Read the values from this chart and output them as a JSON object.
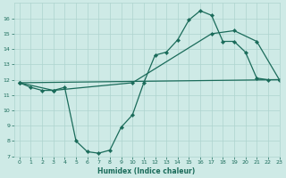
{
  "line1_x": [
    0,
    1,
    2,
    3,
    4,
    5,
    6,
    7,
    8,
    9,
    10,
    11,
    12,
    13,
    14,
    15,
    16,
    17,
    18,
    19,
    20,
    21,
    22,
    23
  ],
  "line1_y": [
    11.8,
    11.5,
    11.3,
    11.3,
    11.5,
    8.0,
    7.3,
    7.2,
    7.4,
    8.9,
    9.7,
    11.8,
    13.6,
    13.8,
    14.6,
    15.9,
    16.5,
    16.2,
    14.5,
    14.5,
    13.8,
    12.1,
    12.0,
    12.0
  ],
  "line2_x": [
    0,
    23
  ],
  "line2_y": [
    11.8,
    12.0
  ],
  "line3_x": [
    0,
    3,
    10,
    17,
    19,
    21,
    23
  ],
  "line3_y": [
    11.8,
    11.3,
    11.8,
    15.0,
    15.2,
    14.5,
    12.0
  ],
  "color": "#1a6b5a",
  "bg_color": "#ceeae6",
  "grid_color": "#aed4cf",
  "xlabel": "Humidex (Indice chaleur)",
  "ylim": [
    7,
    17
  ],
  "xlim": [
    -0.5,
    23
  ],
  "yticks": [
    7,
    8,
    9,
    10,
    11,
    12,
    13,
    14,
    15,
    16
  ],
  "xticks": [
    0,
    1,
    2,
    3,
    4,
    5,
    6,
    7,
    8,
    9,
    10,
    11,
    12,
    13,
    14,
    15,
    16,
    17,
    18,
    19,
    20,
    21,
    22,
    23
  ],
  "xtick_labels": [
    "0",
    "1",
    "2",
    "3",
    "4",
    "5",
    "6",
    "7",
    "8",
    "9",
    "10",
    "11",
    "12",
    "13",
    "14",
    "15",
    "16",
    "17",
    "18",
    "19",
    "20",
    "21",
    "22",
    "23"
  ]
}
